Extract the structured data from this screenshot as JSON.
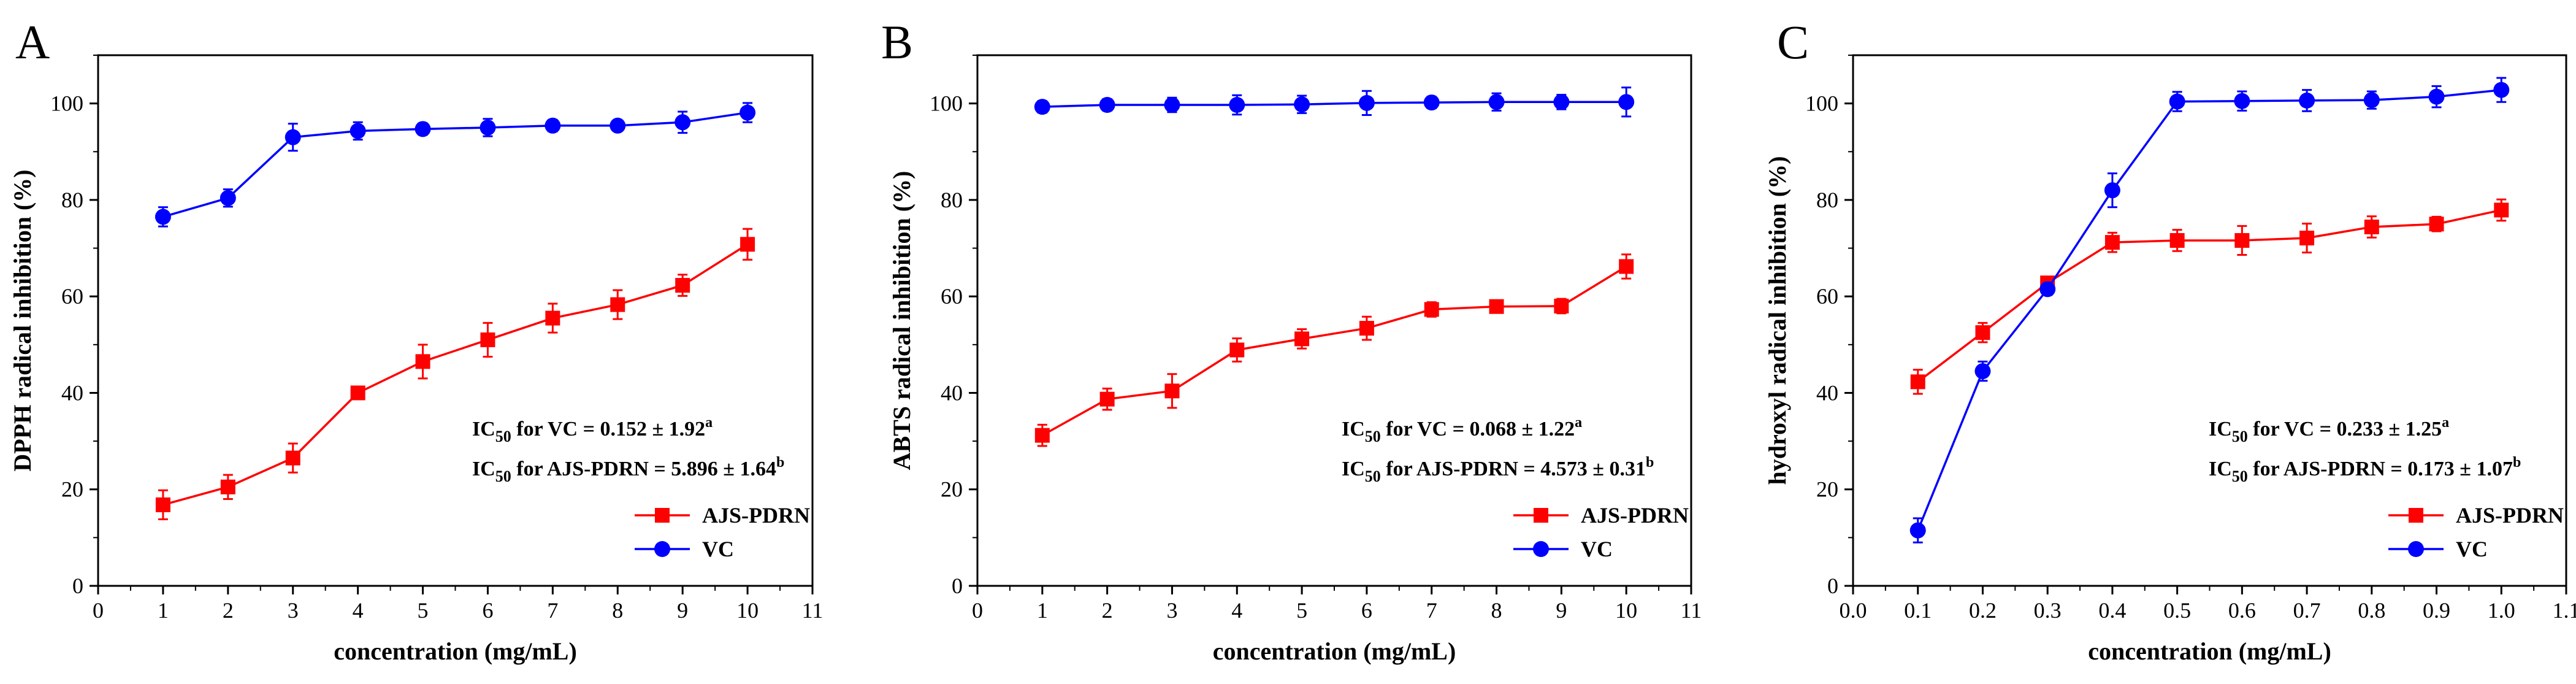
{
  "colors": {
    "AJS-PDRN": "#ff0000",
    "VC": "#0000ff",
    "axis": "#000000"
  },
  "chart_data": [
    {
      "type": "line",
      "panel_label": "A",
      "xlabel": "concentration (mg/mL)",
      "ylabel": "DPPH radical inhibition (%)",
      "xlim": [
        0,
        11
      ],
      "ylim": [
        0,
        110
      ],
      "xticks": [
        "0",
        "1",
        "2",
        "3",
        "4",
        "5",
        "6",
        "7",
        "8",
        "9",
        "10",
        "11"
      ],
      "yticks": [
        "0",
        "20",
        "40",
        "60",
        "80",
        "100"
      ],
      "legend_position": "bottom-right",
      "annotations": [
        {
          "prefix": "IC",
          "sub": "50",
          "text": " for VC = 0.152 ± 1.92",
          "sup": "a"
        },
        {
          "prefix": "IC",
          "sub": "50",
          "text": " for AJS-PDRN = 5.896 ± 1.64",
          "sup": "b"
        }
      ],
      "series": [
        {
          "name": "AJS-PDRN",
          "marker": "square",
          "x": [
            1,
            2,
            3,
            4,
            5,
            6,
            7,
            8,
            9,
            10
          ],
          "values": [
            16.8,
            20.5,
            26.5,
            40.0,
            46.5,
            51.0,
            55.5,
            58.3,
            62.3,
            70.8
          ],
          "error": [
            3.0,
            2.5,
            3.0,
            1.2,
            3.5,
            3.5,
            3.0,
            3.0,
            2.2,
            3.2
          ]
        },
        {
          "name": "VC",
          "marker": "circle",
          "x": [
            1,
            2,
            3,
            4,
            5,
            6,
            7,
            8,
            9,
            10
          ],
          "values": [
            76.5,
            80.4,
            93.0,
            94.3,
            94.7,
            95.0,
            95.4,
            95.4,
            96.1,
            98.1
          ],
          "error": [
            2.0,
            1.8,
            2.8,
            1.8,
            1.2,
            1.8,
            1.2,
            1.0,
            2.2,
            2.0
          ]
        }
      ]
    },
    {
      "type": "line",
      "panel_label": "B",
      "xlabel": "concentration (mg/mL)",
      "ylabel": "ABTS radical inhibition (%)",
      "xlim": [
        0,
        11
      ],
      "ylim": [
        0,
        110
      ],
      "xticks": [
        "0",
        "1",
        "2",
        "3",
        "4",
        "5",
        "6",
        "7",
        "8",
        "9",
        "10",
        "11"
      ],
      "yticks": [
        "0",
        "20",
        "40",
        "60",
        "80",
        "100"
      ],
      "legend_position": "bottom-right",
      "annotations": [
        {
          "prefix": "IC",
          "sub": "50",
          "text": " for VC = 0.068 ± 1.22",
          "sup": "a"
        },
        {
          "prefix": "IC",
          "sub": "50",
          "text": " for AJS-PDRN = 4.573 ± 0.31",
          "sup": "b"
        }
      ],
      "series": [
        {
          "name": "AJS-PDRN",
          "marker": "square",
          "x": [
            1,
            2,
            3,
            4,
            5,
            6,
            7,
            8,
            9,
            10
          ],
          "values": [
            31.2,
            38.7,
            40.4,
            48.9,
            51.2,
            53.4,
            57.3,
            57.9,
            58.0,
            66.2
          ],
          "error": [
            2.2,
            2.2,
            3.5,
            2.4,
            2.0,
            2.4,
            1.5,
            1.2,
            1.5,
            2.5
          ]
        },
        {
          "name": "VC",
          "marker": "circle",
          "x": [
            1,
            2,
            3,
            4,
            5,
            6,
            7,
            8,
            9,
            10
          ],
          "values": [
            99.3,
            99.7,
            99.7,
            99.7,
            99.8,
            100.1,
            100.2,
            100.3,
            100.3,
            100.3
          ],
          "error": [
            1.2,
            1.2,
            1.5,
            2.0,
            1.8,
            2.5,
            1.2,
            1.8,
            1.5,
            3.0
          ]
        }
      ]
    },
    {
      "type": "line",
      "panel_label": "C",
      "xlabel": "concentration (mg/mL)",
      "ylabel": "hydroxyl radical inhibition (%)",
      "xlim": [
        0,
        1.1
      ],
      "ylim": [
        0,
        110
      ],
      "xticks": [
        "0.0",
        "0.1",
        "0.2",
        "0.3",
        "0.4",
        "0.5",
        "0.6",
        "0.7",
        "0.8",
        "0.9",
        "1.0",
        "1.1"
      ],
      "yticks": [
        "0",
        "20",
        "40",
        "60",
        "80",
        "100"
      ],
      "legend_position": "bottom-right",
      "annotations": [
        {
          "prefix": "IC",
          "sub": "50",
          "text": " for VC = 0.233 ± 1.25",
          "sup": "a"
        },
        {
          "prefix": "IC",
          "sub": "50",
          "text": " for AJS-PDRN = 0.173 ± 1.07",
          "sup": "b"
        }
      ],
      "series": [
        {
          "name": "AJS-PDRN",
          "marker": "square",
          "x": [
            0.1,
            0.2,
            0.3,
            0.4,
            0.5,
            0.6,
            0.7,
            0.8,
            0.9,
            1.0
          ],
          "values": [
            42.3,
            52.5,
            62.8,
            71.2,
            71.6,
            71.6,
            72.1,
            74.4,
            75.0,
            77.9
          ],
          "error": [
            2.5,
            2.0,
            1.2,
            2.0,
            2.2,
            3.0,
            3.0,
            2.2,
            1.5,
            2.2
          ]
        },
        {
          "name": "VC",
          "marker": "circle",
          "x": [
            0.1,
            0.2,
            0.3,
            0.4,
            0.5,
            0.6,
            0.7,
            0.8,
            0.9,
            1.0
          ],
          "values": [
            11.5,
            44.5,
            61.5,
            82.0,
            100.4,
            100.5,
            100.6,
            100.7,
            101.4,
            102.8
          ],
          "error": [
            2.5,
            2.0,
            1.2,
            3.5,
            2.0,
            2.0,
            2.2,
            1.8,
            2.2,
            2.5
          ]
        }
      ]
    }
  ]
}
